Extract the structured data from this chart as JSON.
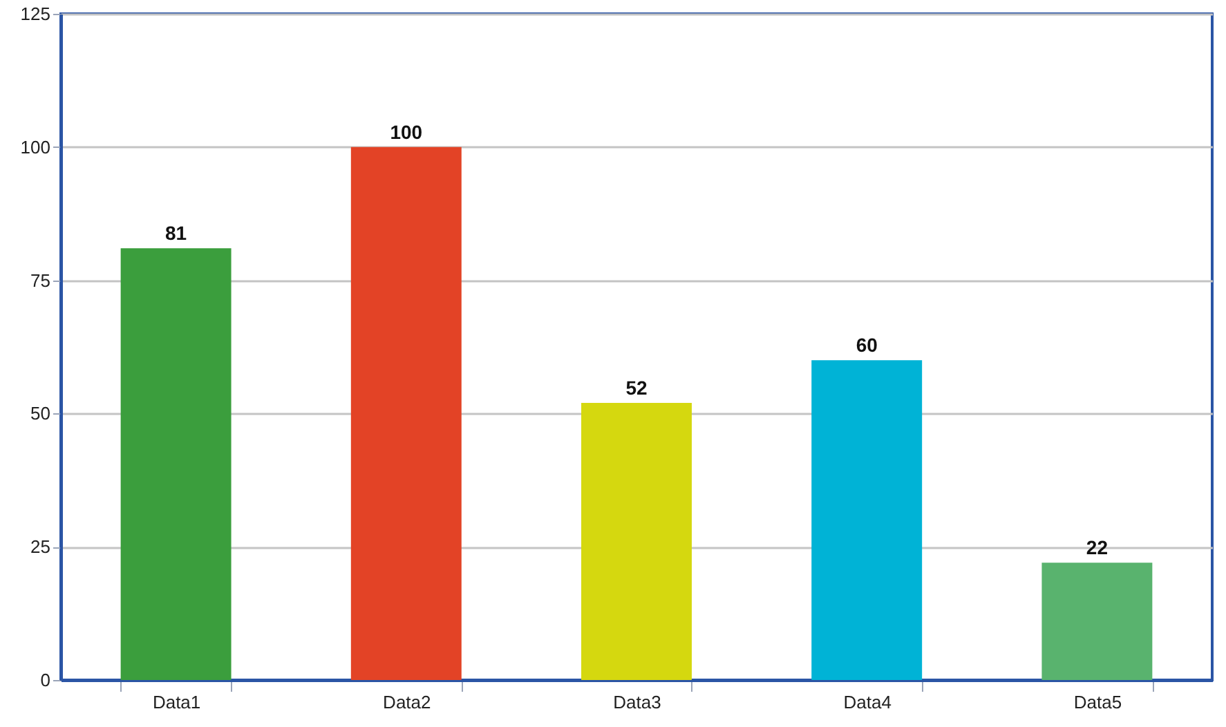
{
  "chart_data": {
    "type": "bar",
    "categories": [
      "Data1",
      "Data2",
      "Data3",
      "Data4",
      "Data5"
    ],
    "values": [
      81,
      100,
      52,
      60,
      22
    ],
    "colors": [
      "#3b9e3d",
      "#e34326",
      "#d5d80f",
      "#00b3d6",
      "#59b36e"
    ],
    "ylim": [
      0,
      125
    ],
    "yticks": [
      0,
      25,
      50,
      75,
      100,
      125
    ],
    "grid": "y",
    "data_labels": true
  }
}
